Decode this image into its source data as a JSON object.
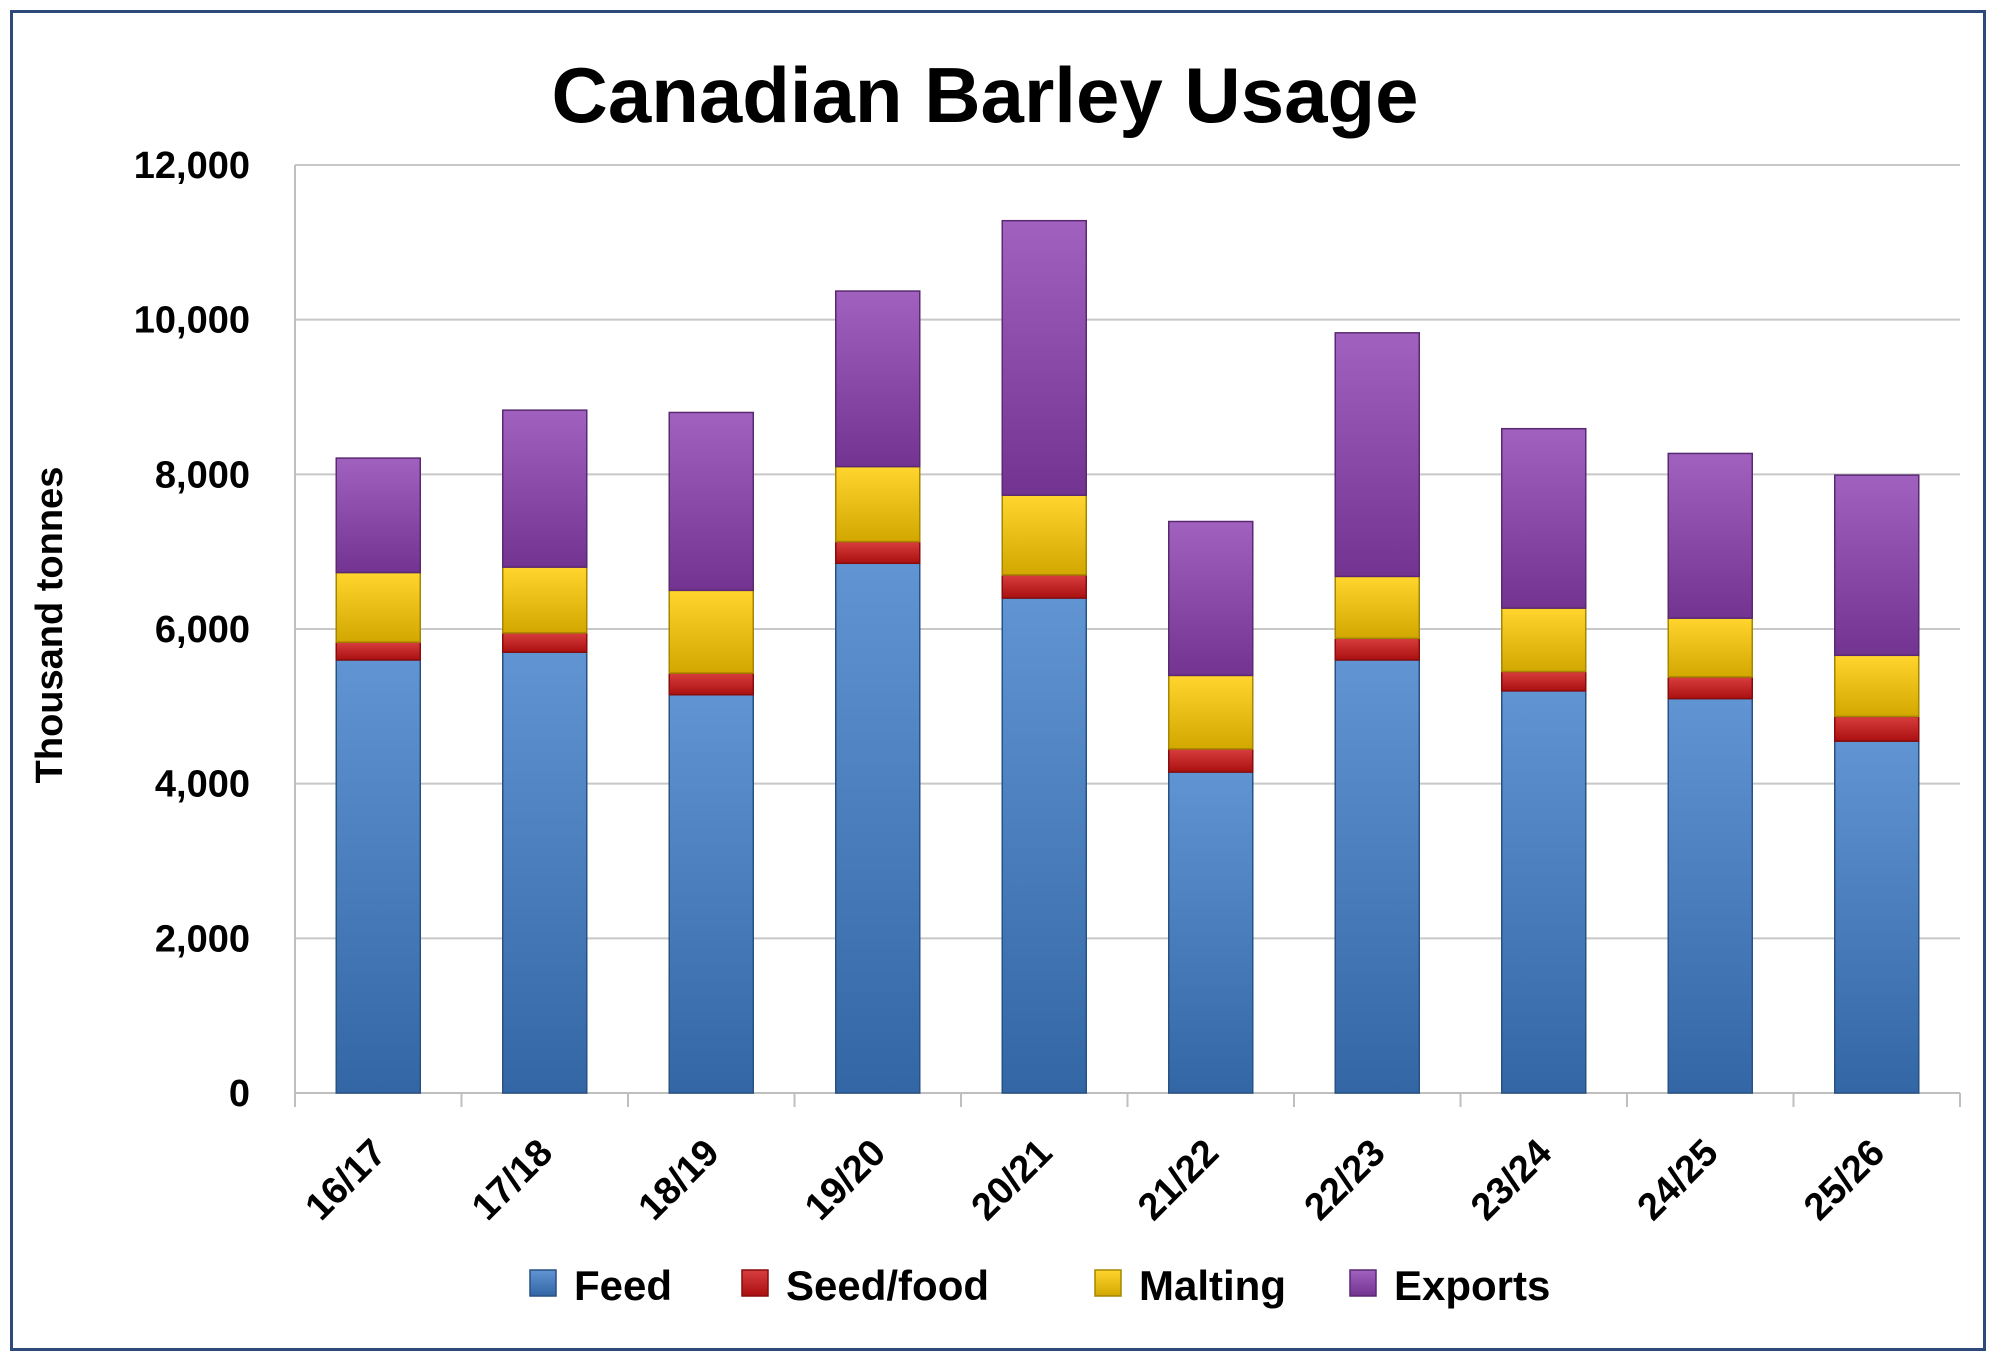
{
  "chart_data": {
    "type": "bar",
    "stacked": true,
    "title": "Canadian Barley Usage",
    "xlabel": "",
    "ylabel": "Thousand tonnes",
    "ylim": [
      0,
      12000
    ],
    "yticks": [
      0,
      2000,
      4000,
      6000,
      8000,
      10000,
      12000
    ],
    "ytick_labels": [
      "0",
      "2,000",
      "4,000",
      "6,000",
      "8,000",
      "10,000",
      "12,000"
    ],
    "grid": true,
    "legend": "bottom",
    "categories": [
      "16/17",
      "17/18",
      "18/19",
      "19/20",
      "20/21",
      "21/22",
      "22/23",
      "23/24",
      "24/25",
      "25/26"
    ],
    "series": [
      {
        "name": "Feed",
        "color": "#3e7cc9",
        "values": [
          5600,
          5700,
          5150,
          6850,
          6400,
          4150,
          5600,
          5200,
          5100,
          4550
        ]
      },
      {
        "name": "Seed/food",
        "color": "#d01414",
        "values": [
          230,
          250,
          280,
          280,
          300,
          300,
          280,
          250,
          280,
          320
        ]
      },
      {
        "name": "Malting",
        "color": "#ffcc00",
        "values": [
          900,
          850,
          1070,
          970,
          1030,
          950,
          800,
          820,
          760,
          790
        ]
      },
      {
        "name": "Exports",
        "color": "#8b3fb0",
        "values": [
          1480,
          2030,
          2300,
          2270,
          3550,
          1990,
          3150,
          2320,
          2130,
          2330
        ]
      }
    ]
  }
}
